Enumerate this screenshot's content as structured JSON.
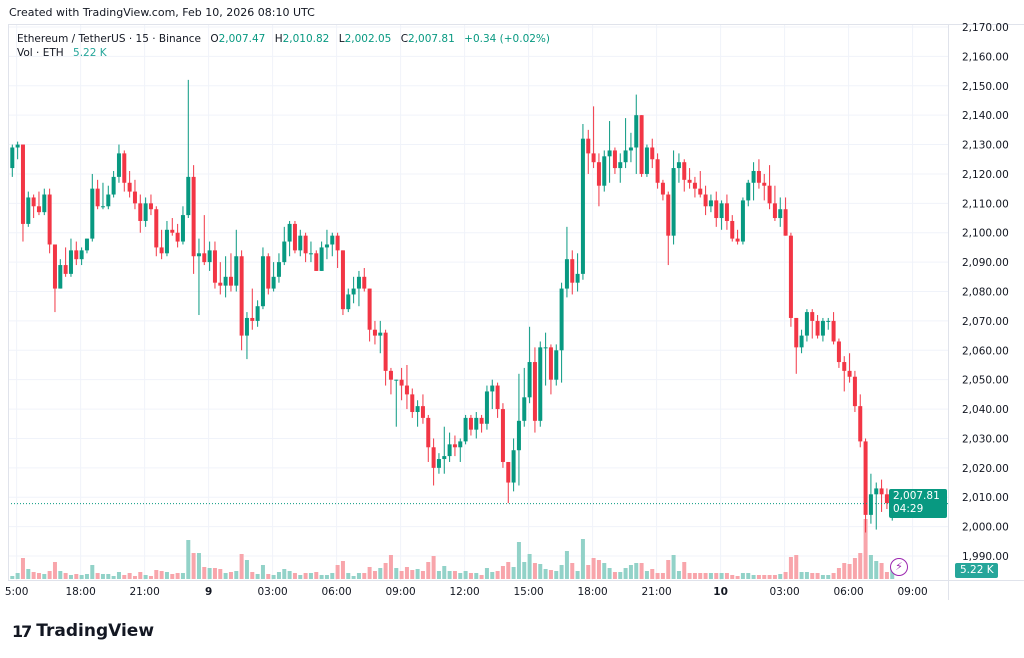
{
  "created": "Created with TradingView.com, Feb 10, 2026 08:10 UTC",
  "legend": {
    "symbol": "Ethereum / TetherUS · 15 · Binance",
    "o_label": "O",
    "o": "2,007.47",
    "h_label": "H",
    "h": "2,010.82",
    "l_label": "L",
    "l": "2,002.05",
    "c_label": "C",
    "c": "2,007.81",
    "change": "+0.34 (+0.02%)",
    "vol_label": "Vol · ETH",
    "vol": "5.22 K"
  },
  "price_tag": {
    "price": "2,007.81",
    "countdown": "04:29"
  },
  "vol_tag": "5.22 K",
  "logo": {
    "mark": "17",
    "text": "TradingView"
  },
  "colors": {
    "up": "#089981",
    "down": "#F23645",
    "up_vol": "#92d2c8",
    "down_vol": "#f8a5ab",
    "grid": "#f0f3fa"
  },
  "chart_data": {
    "type": "candlestick",
    "title": "Ethereum / TetherUS · 15 · Binance",
    "ylim": [
      1985,
      2172
    ],
    "y_ticks": [
      "2,170.00",
      "2,160.00",
      "2,150.00",
      "2,140.00",
      "2,130.00",
      "2,120.00",
      "2,110.00",
      "2,100.00",
      "2,090.00",
      "2,080.00",
      "2,070.00",
      "2,060.00",
      "2,050.00",
      "2,040.00",
      "2,030.00",
      "2,020.00",
      "2,010.00",
      "2,000.00",
      "1,990.00"
    ],
    "y_tick_values": [
      2170,
      2160,
      2150,
      2140,
      2130,
      2120,
      2110,
      2100,
      2090,
      2080,
      2070,
      2060,
      2050,
      2040,
      2030,
      2020,
      2010,
      2000,
      1990
    ],
    "x_ticks": [
      {
        "label": "5:00",
        "index": 1
      },
      {
        "label": "18:00",
        "index": 13
      },
      {
        "label": "21:00",
        "index": 25
      },
      {
        "label": "9",
        "index": 37
      },
      {
        "label": "03:00",
        "index": 49
      },
      {
        "label": "06:00",
        "index": 61
      },
      {
        "label": "09:00",
        "index": 73
      },
      {
        "label": "12:00",
        "index": 85
      },
      {
        "label": "15:00",
        "index": 97
      },
      {
        "label": "18:00",
        "index": 109
      },
      {
        "label": "21:00",
        "index": 121
      },
      {
        "label": "10",
        "index": 133
      },
      {
        "label": "03:00",
        "index": 145
      },
      {
        "label": "06:00",
        "index": 157
      },
      {
        "label": "09:00",
        "index": 169
      }
    ],
    "last_price": 2007.81,
    "volume_unit": "K",
    "ohlc": [
      [
        2122,
        2130,
        2119,
        2129
      ],
      [
        2129,
        2131,
        2125,
        2130
      ],
      [
        2130,
        2130,
        2097,
        2103
      ],
      [
        2103,
        2114,
        2102,
        2112
      ],
      [
        2112,
        2113,
        2105,
        2109
      ],
      [
        2109,
        2114,
        2106,
        2107
      ],
      [
        2107,
        2115,
        2106,
        2113
      ],
      [
        2113,
        2115,
        2093,
        2096
      ],
      [
        2096,
        2096,
        2073,
        2081
      ],
      [
        2081,
        2091,
        2081,
        2089
      ],
      [
        2089,
        2095,
        2085,
        2086
      ],
      [
        2086,
        2098,
        2085,
        2094
      ],
      [
        2094,
        2097,
        2089,
        2091
      ],
      [
        2091,
        2095,
        2089,
        2094
      ],
      [
        2094,
        2098,
        2093,
        2098
      ],
      [
        2098,
        2120,
        2097,
        2115
      ],
      [
        2115,
        2118,
        2108,
        2109
      ],
      [
        2109,
        2117,
        2108,
        2109
      ],
      [
        2109,
        2116,
        2108,
        2113
      ],
      [
        2113,
        2121,
        2112,
        2119
      ],
      [
        2119,
        2130,
        2117,
        2127
      ],
      [
        2127,
        2128,
        2114,
        2117
      ],
      [
        2117,
        2121,
        2112,
        2114
      ],
      [
        2114,
        2118,
        2108,
        2110
      ],
      [
        2110,
        2113,
        2100,
        2104
      ],
      [
        2104,
        2112,
        2102,
        2110
      ],
      [
        2110,
        2113,
        2106,
        2108
      ],
      [
        2108,
        2109,
        2092,
        2095
      ],
      [
        2095,
        2101,
        2091,
        2093
      ],
      [
        2093,
        2104,
        2092,
        2101
      ],
      [
        2101,
        2105,
        2099,
        2100
      ],
      [
        2100,
        2103,
        2095,
        2097
      ],
      [
        2097,
        2109,
        2096,
        2106
      ],
      [
        2106,
        2152,
        2105,
        2119
      ],
      [
        2119,
        2123,
        2086,
        2092
      ],
      [
        2092,
        2098,
        2072,
        2093
      ],
      [
        2093,
        2106,
        2089,
        2090
      ],
      [
        2090,
        2097,
        2087,
        2094
      ],
      [
        2094,
        2097,
        2081,
        2083
      ],
      [
        2083,
        2090,
        2079,
        2082
      ],
      [
        2082,
        2092,
        2078,
        2085
      ],
      [
        2085,
        2093,
        2080,
        2082
      ],
      [
        2082,
        2101,
        2080,
        2092
      ],
      [
        2092,
        2094,
        2060,
        2065
      ],
      [
        2065,
        2073,
        2057,
        2071
      ],
      [
        2071,
        2081,
        2067,
        2070
      ],
      [
        2070,
        2077,
        2068,
        2075
      ],
      [
        2075,
        2095,
        2074,
        2092
      ],
      [
        2092,
        2093,
        2079,
        2081
      ],
      [
        2081,
        2090,
        2080,
        2085
      ],
      [
        2085,
        2093,
        2083,
        2090
      ],
      [
        2090,
        2102,
        2089,
        2097
      ],
      [
        2097,
        2104,
        2092,
        2103
      ],
      [
        2103,
        2104,
        2093,
        2094
      ],
      [
        2094,
        2101,
        2092,
        2099
      ],
      [
        2099,
        2100,
        2090,
        2093
      ],
      [
        2093,
        2097,
        2090,
        2093
      ],
      [
        2093,
        2094,
        2087,
        2087
      ],
      [
        2087,
        2097,
        2087,
        2095
      ],
      [
        2095,
        2101,
        2091,
        2096
      ],
      [
        2096,
        2100,
        2092,
        2099
      ],
      [
        2099,
        2100,
        2088,
        2094
      ],
      [
        2094,
        2094,
        2072,
        2074
      ],
      [
        2074,
        2081,
        2073,
        2079
      ],
      [
        2079,
        2085,
        2076,
        2081
      ],
      [
        2081,
        2087,
        2075,
        2085
      ],
      [
        2085,
        2088,
        2080,
        2081
      ],
      [
        2081,
        2081,
        2063,
        2067
      ],
      [
        2067,
        2070,
        2062,
        2065
      ],
      [
        2065,
        2070,
        2059,
        2066
      ],
      [
        2066,
        2067,
        2048,
        2053
      ],
      [
        2053,
        2054,
        2045,
        2050
      ],
      [
        2050,
        2050,
        2034,
        2050
      ],
      [
        2050,
        2054,
        2043,
        2048
      ],
      [
        2048,
        2055,
        2040,
        2045
      ],
      [
        2045,
        2047,
        2037,
        2039
      ],
      [
        2039,
        2043,
        2034,
        2041
      ],
      [
        2041,
        2045,
        2035,
        2037
      ],
      [
        2037,
        2038,
        2022,
        2027
      ],
      [
        2027,
        2030,
        2014,
        2020
      ],
      [
        2020,
        2025,
        2018,
        2023
      ],
      [
        2023,
        2034,
        2018,
        2024
      ],
      [
        2024,
        2032,
        2022,
        2028
      ],
      [
        2028,
        2031,
        2024,
        2027
      ],
      [
        2027,
        2030,
        2022,
        2029
      ],
      [
        2029,
        2038,
        2028,
        2037
      ],
      [
        2037,
        2038,
        2031,
        2033
      ],
      [
        2033,
        2039,
        2030,
        2037
      ],
      [
        2037,
        2038,
        2032,
        2035
      ],
      [
        2035,
        2048,
        2033,
        2046
      ],
      [
        2046,
        2050,
        2040,
        2048
      ],
      [
        2048,
        2049,
        2037,
        2040
      ],
      [
        2040,
        2042,
        2020,
        2022
      ],
      [
        2022,
        2022,
        2008,
        2015
      ],
      [
        2015,
        2030,
        2012,
        2026
      ],
      [
        2026,
        2052,
        2014,
        2036
      ],
      [
        2036,
        2054,
        2034,
        2044
      ],
      [
        2044,
        2068,
        2042,
        2056
      ],
      [
        2056,
        2061,
        2032,
        2036
      ],
      [
        2036,
        2063,
        2034,
        2061
      ],
      [
        2061,
        2066,
        2048,
        2061
      ],
      [
        2061,
        2062,
        2045,
        2050
      ],
      [
        2050,
        2062,
        2048,
        2060
      ],
      [
        2060,
        2083,
        2049,
        2081
      ],
      [
        2081,
        2102,
        2078,
        2091
      ],
      [
        2091,
        2094,
        2079,
        2083
      ],
      [
        2083,
        2093,
        2080,
        2086
      ],
      [
        2086,
        2137,
        2084,
        2132
      ],
      [
        2132,
        2135,
        2120,
        2127
      ],
      [
        2127,
        2143,
        2122,
        2124
      ],
      [
        2124,
        2127,
        2109,
        2116
      ],
      [
        2116,
        2128,
        2114,
        2126
      ],
      [
        2126,
        2138,
        2117,
        2128
      ],
      [
        2128,
        2129,
        2120,
        2122
      ],
      [
        2122,
        2127,
        2117,
        2124
      ],
      [
        2124,
        2139,
        2122,
        2128
      ],
      [
        2128,
        2134,
        2124,
        2129
      ],
      [
        2129,
        2147,
        2120,
        2140
      ],
      [
        2140,
        2140,
        2119,
        2120
      ],
      [
        2120,
        2130,
        2119,
        2129
      ],
      [
        2129,
        2132,
        2122,
        2125
      ],
      [
        2125,
        2127,
        2115,
        2117
      ],
      [
        2117,
        2118,
        2111,
        2113
      ],
      [
        2113,
        2114,
        2089,
        2099
      ],
      [
        2099,
        2128,
        2096,
        2122
      ],
      [
        2122,
        2127,
        2117,
        2124
      ],
      [
        2124,
        2125,
        2114,
        2118
      ],
      [
        2118,
        2122,
        2115,
        2117
      ],
      [
        2117,
        2119,
        2112,
        2115
      ],
      [
        2115,
        2121,
        2112,
        2113
      ],
      [
        2113,
        2116,
        2106,
        2109
      ],
      [
        2109,
        2113,
        2107,
        2111
      ],
      [
        2111,
        2114,
        2102,
        2105
      ],
      [
        2105,
        2111,
        2101,
        2110
      ],
      [
        2110,
        2113,
        2101,
        2104
      ],
      [
        2104,
        2106,
        2097,
        2098
      ],
      [
        2098,
        2101,
        2096,
        2097
      ],
      [
        2097,
        2112,
        2096,
        2111
      ],
      [
        2111,
        2118,
        2109,
        2117
      ],
      [
        2117,
        2124,
        2111,
        2121
      ],
      [
        2121,
        2125,
        2115,
        2117
      ],
      [
        2117,
        2120,
        2111,
        2116
      ],
      [
        2116,
        2123,
        2108,
        2110
      ],
      [
        2110,
        2116,
        2104,
        2105
      ],
      [
        2105,
        2112,
        2102,
        2108
      ],
      [
        2108,
        2112,
        2099,
        2099
      ],
      [
        2099,
        2100,
        2068,
        2071
      ],
      [
        2071,
        2071,
        2052,
        2061
      ],
      [
        2061,
        2067,
        2059,
        2065
      ],
      [
        2065,
        2074,
        2063,
        2073
      ],
      [
        2073,
        2074,
        2064,
        2070
      ],
      [
        2070,
        2072,
        2064,
        2065
      ],
      [
        2065,
        2071,
        2063,
        2070
      ],
      [
        2070,
        2071,
        2067,
        2070
      ],
      [
        2070,
        2073,
        2062,
        2063
      ],
      [
        2063,
        2064,
        2054,
        2056
      ],
      [
        2056,
        2058,
        2046,
        2053
      ],
      [
        2053,
        2059,
        2049,
        2051
      ],
      [
        2051,
        2053,
        2039,
        2041
      ],
      [
        2041,
        2045,
        2027,
        2029
      ],
      [
        2029,
        2030,
        1998,
        2004
      ],
      [
        2004,
        2018,
        2001,
        2011
      ],
      [
        2011,
        2015,
        1999,
        2013
      ],
      [
        2013,
        2016,
        2005,
        2011
      ],
      [
        2011,
        2013,
        2006,
        2008
      ],
      [
        2007.47,
        2010.82,
        2002.05,
        2007.81
      ]
    ],
    "volume": [
      1.5,
      3,
      10.5,
      5,
      3.5,
      3,
      2.5,
      4,
      8.5,
      4,
      3,
      2,
      2.5,
      2,
      2.5,
      7,
      3,
      2.5,
      2.5,
      1.5,
      3.5,
      2,
      3,
      1.5,
      3.5,
      2,
      1.5,
      4.5,
      4,
      3.5,
      2.5,
      3,
      3,
      19.5,
      13,
      13,
      6,
      5.5,
      5.5,
      5,
      3,
      3.5,
      4,
      12.5,
      9.5,
      3.5,
      2.5,
      7,
      2.5,
      2,
      3.5,
      5,
      4,
      3,
      2,
      3,
      3,
      3.5,
      2,
      2,
      3,
      7,
      9,
      3,
      1.5,
      3,
      3,
      6,
      4,
      5.5,
      8,
      12,
      5.5,
      4,
      6,
      4.5,
      5,
      4,
      8.5,
      11.5,
      4,
      6.5,
      4,
      4,
      3,
      4,
      3,
      3,
      2,
      5.5,
      3.5,
      4,
      6.5,
      8.5,
      6,
      18.5,
      8.5,
      12.5,
      8,
      7.5,
      5,
      4.5,
      4,
      7,
      14,
      8,
      4,
      20,
      7,
      10.5,
      9.5,
      8,
      5.5,
      3.5,
      3.5,
      5.5,
      7,
      8,
      8,
      4,
      5,
      3,
      3,
      9.5,
      12,
      4,
      8.5,
      3,
      3,
      3,
      3,
      3,
      3,
      3,
      3,
      2,
      1.5,
      3,
      3,
      2,
      2,
      2,
      2,
      2,
      2.5,
      3.5,
      11,
      12,
      3.5,
      3.5,
      3,
      3,
      2,
      2,
      3,
      5.5,
      8,
      7.5,
      10.5,
      13,
      30,
      12,
      9,
      8,
      3.5,
      5.22
    ]
  }
}
